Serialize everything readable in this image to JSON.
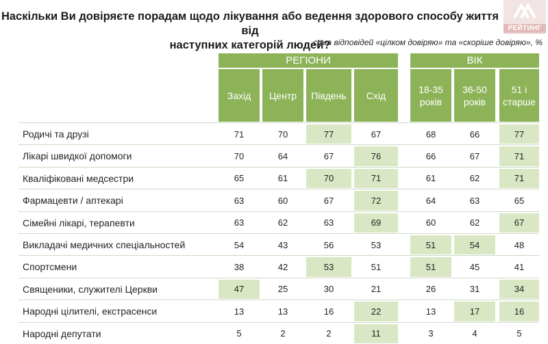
{
  "header": {
    "title_line1": "Наскільки Ви довіряєте порадам щодо лікування або ведення здорового способу життя від",
    "title_line2": "наступних категорій людей?",
    "subtitle": "сума відповідей «цілком довіряю» та «скоріше довіряю», %",
    "logo_text": "РЕЙТИНГ"
  },
  "colors": {
    "header_green": "#8db358",
    "highlight_green": "#d9e7c4"
  },
  "chart_data": {
    "type": "table",
    "title": "Наскільки Ви довіряєте порадам щодо лікування або ведення здорового способу життя від наступних категорій людей?",
    "unit": "%",
    "groups": [
      {
        "name": "РЕГІОНИ",
        "columns": [
          "Захід",
          "Центр",
          "Південь",
          "Схід"
        ]
      },
      {
        "name": "ВІК",
        "columns": [
          "18-35 років",
          "36-50 років",
          "51 і старше"
        ]
      }
    ],
    "rows": [
      {
        "label": "Родичі та друзі",
        "values": [
          71,
          70,
          77,
          67,
          68,
          66,
          77
        ],
        "highlight": [
          false,
          false,
          true,
          false,
          false,
          false,
          true
        ]
      },
      {
        "label": "Лікарі швидкої допомоги",
        "values": [
          70,
          64,
          67,
          76,
          66,
          67,
          71
        ],
        "highlight": [
          false,
          false,
          false,
          true,
          false,
          false,
          true
        ]
      },
      {
        "label": "Кваліфіковані медсестри",
        "values": [
          65,
          61,
          70,
          71,
          61,
          62,
          71
        ],
        "highlight": [
          false,
          false,
          true,
          true,
          false,
          false,
          true
        ]
      },
      {
        "label": "Фармацевти / аптекарі",
        "values": [
          63,
          60,
          67,
          72,
          64,
          63,
          65
        ],
        "highlight": [
          false,
          false,
          false,
          true,
          false,
          false,
          false
        ]
      },
      {
        "label": "Сімейні лікарі, терапевти",
        "values": [
          63,
          62,
          63,
          69,
          60,
          62,
          67
        ],
        "highlight": [
          false,
          false,
          false,
          true,
          false,
          false,
          true
        ]
      },
      {
        "label": "Викладачі медичних спеціальностей",
        "values": [
          54,
          43,
          56,
          53,
          51,
          54,
          48
        ],
        "highlight": [
          false,
          false,
          false,
          false,
          true,
          true,
          false
        ]
      },
      {
        "label": "Спортсмени",
        "values": [
          38,
          42,
          53,
          51,
          51,
          45,
          41
        ],
        "highlight": [
          false,
          false,
          true,
          false,
          true,
          false,
          false
        ]
      },
      {
        "label": "Священики, служителі Церкви",
        "values": [
          47,
          25,
          30,
          21,
          26,
          31,
          34
        ],
        "highlight": [
          true,
          false,
          false,
          false,
          false,
          false,
          true
        ]
      },
      {
        "label": "Народні цілителі, екстрасенси",
        "values": [
          13,
          13,
          16,
          22,
          13,
          17,
          16
        ],
        "highlight": [
          false,
          false,
          false,
          true,
          false,
          true,
          true
        ]
      },
      {
        "label": "Народні депутати",
        "values": [
          5,
          2,
          2,
          11,
          3,
          4,
          5
        ],
        "highlight": [
          false,
          false,
          false,
          true,
          false,
          false,
          false
        ]
      }
    ]
  }
}
